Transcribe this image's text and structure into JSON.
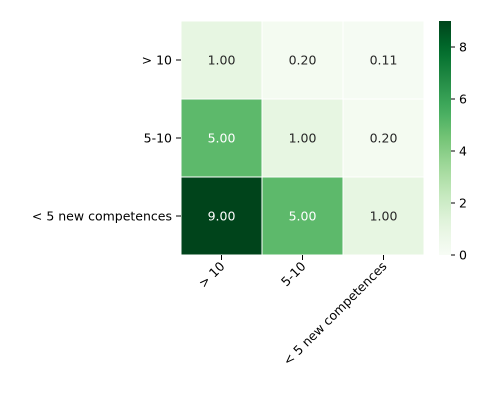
{
  "chart_data": {
    "type": "heatmap",
    "x_categories": [
      "> 10",
      "5-10",
      "< 5 new competences"
    ],
    "y_categories": [
      "> 10",
      "5-10",
      "< 5 new competences"
    ],
    "values": [
      [
        1.0,
        0.2,
        0.11
      ],
      [
        5.0,
        1.0,
        0.2
      ],
      [
        9.0,
        5.0,
        1.0
      ]
    ],
    "cell_labels": [
      [
        "1.00",
        "0.20",
        "0.11"
      ],
      [
        "5.00",
        "1.00",
        "0.20"
      ],
      [
        "9.00",
        "5.00",
        "1.00"
      ]
    ],
    "colorbar": {
      "vmin": 0,
      "vmax": 9,
      "ticks": [
        0,
        2,
        4,
        6,
        8
      ],
      "tick_labels": [
        "0",
        "2",
        "4",
        "6",
        "8"
      ]
    },
    "colormap": "Greens",
    "colors": {
      "low": "#f7fcf5",
      "high": "#00441b",
      "cell_border": "#ffffff",
      "text_dark": "#262626",
      "text_light": "#ffffff"
    },
    "title": "",
    "xlabel": "",
    "ylabel": ""
  }
}
